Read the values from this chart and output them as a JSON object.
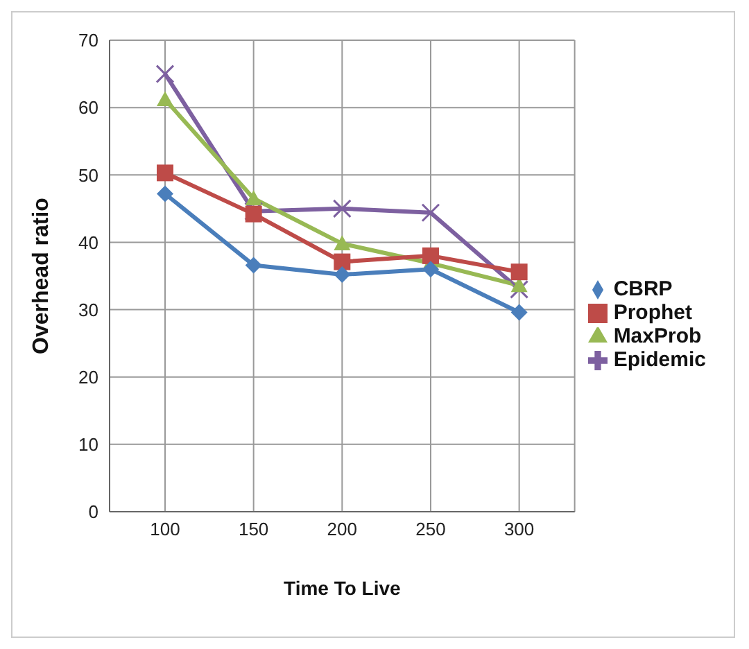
{
  "chart_data": {
    "type": "line",
    "xlabel": "Time To Live",
    "ylabel": "Overhead ratio",
    "categories": [
      "100",
      "150",
      "200",
      "250",
      "300"
    ],
    "series": [
      {
        "name": "CBRP",
        "color": "#4a7ebb",
        "marker": "diamond",
        "values": [
          47.2,
          36.6,
          35.2,
          36,
          29.6
        ]
      },
      {
        "name": "Prophet",
        "color": "#be4b48",
        "marker": "square",
        "values": [
          50.3,
          44.2,
          37.1,
          38,
          35.6
        ]
      },
      {
        "name": "MaxProb",
        "color": "#98b954",
        "marker": "triangle",
        "values": [
          61.2,
          46.5,
          39.8,
          36.9,
          33.6
        ]
      },
      {
        "name": "Epidemic",
        "color": "#7d60a0",
        "marker": "cross",
        "values": [
          65,
          44.6,
          45,
          44.4,
          33
        ]
      }
    ],
    "ylim": [
      0,
      70
    ],
    "yticks": [
      0,
      10,
      20,
      30,
      40,
      50,
      60,
      70
    ],
    "grid": true,
    "legend": "right"
  }
}
